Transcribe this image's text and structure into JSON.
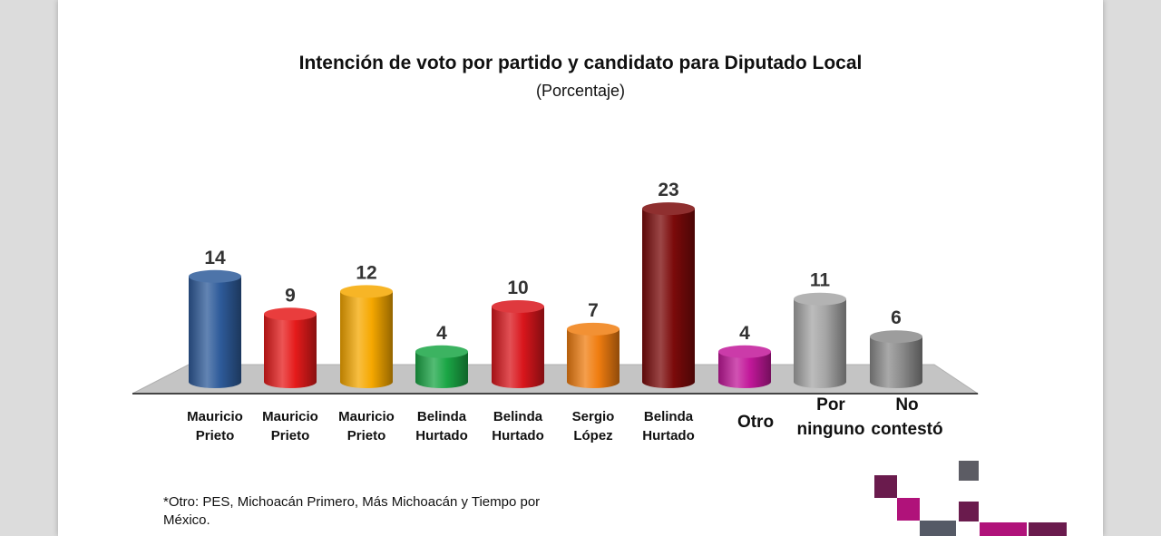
{
  "chart_data": {
    "type": "bar",
    "title": "Intención de voto por partido y candidato para Diputado Local",
    "subtitle": "(Porcentaje)",
    "categories": [
      [
        "Mauricio",
        "Prieto"
      ],
      [
        "Mauricio",
        "Prieto"
      ],
      [
        "Mauricio",
        "Prieto"
      ],
      [
        "Belinda",
        "Hurtado"
      ],
      [
        "Belinda",
        "Hurtado"
      ],
      [
        "Sergio",
        "López"
      ],
      [
        "Belinda",
        "Hurtado"
      ],
      [
        "Otro"
      ],
      [
        "Por",
        "ninguno"
      ],
      [
        "No",
        "contestó"
      ]
    ],
    "values": [
      14,
      9,
      12,
      4,
      10,
      7,
      23,
      4,
      11,
      6
    ],
    "colors": [
      "#2e5b9a",
      "#e51b1b",
      "#f6a800",
      "#1aa645",
      "#d9161c",
      "#f07d10",
      "#7b0a0a",
      "#c2189a",
      "#a6a6a6",
      "#8c8c8c"
    ],
    "ylim": [
      0,
      25
    ],
    "footnote": "*Otro: PES, Michoacán Primero, Más Michoacán y Tiempo por México."
  }
}
